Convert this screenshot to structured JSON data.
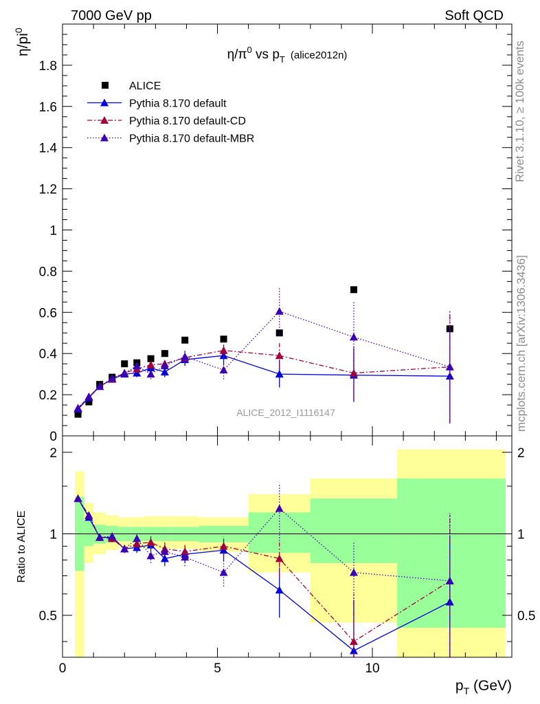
{
  "header": {
    "left": "7000 GeV pp",
    "right": "Soft QCD"
  },
  "side_text": {
    "rivet": "Rivet 3.1.10, ≥ 100k events",
    "mcplots": "mcplots.cern.ch [arXiv:1306.3436]"
  },
  "watermark": "ALICE_2012_I1116147",
  "colors": {
    "data": "#000000",
    "default": "#0000dd",
    "cd": "#a0003c",
    "mbr": "#3c00b4",
    "band_outer": "#ffff99",
    "band_inner": "#99ff99"
  },
  "chart_data": [
    {
      "type": "scatter",
      "title_main": "η/π",
      "title_sup": "0",
      "title_mid": " vs p",
      "title_sub": "T",
      "title_tag": "(alice2012n)",
      "ylabel": "η/pi",
      "ylabel_sup": "0",
      "xlim": [
        0,
        14.5
      ],
      "ylim": [
        0,
        2.0
      ],
      "yticks": [
        "0",
        "0.2",
        "0.4",
        "0.6",
        "0.8",
        "1",
        "1.2",
        "1.4",
        "1.6",
        "1.8"
      ],
      "grid": false,
      "legend_position": "top-left",
      "series": [
        {
          "name": "ALICE",
          "key": "data",
          "marker": "square",
          "x": [
            0.5,
            0.85,
            1.2,
            1.6,
            2.0,
            2.4,
            2.85,
            3.3,
            3.95,
            5.2,
            7.0,
            9.4,
            12.5
          ],
          "y": [
            0.105,
            0.165,
            0.25,
            0.285,
            0.35,
            0.355,
            0.375,
            0.4,
            0.465,
            0.47,
            0.5,
            0.71,
            0.52
          ]
        },
        {
          "name": "Pythia 8.170 default",
          "key": "default",
          "marker": "triangle",
          "line": "solid",
          "x": [
            0.5,
            0.85,
            1.2,
            1.6,
            2.0,
            2.4,
            2.85,
            3.3,
            3.95,
            5.2,
            7.0,
            9.4,
            12.5
          ],
          "y": [
            0.13,
            0.185,
            0.24,
            0.275,
            0.3,
            0.305,
            0.33,
            0.31,
            0.37,
            0.39,
            0.3,
            0.295,
            0.29
          ],
          "err": [
            0.01,
            0.01,
            0.012,
            0.015,
            0.015,
            0.02,
            0.025,
            0.025,
            0.03,
            0.045,
            0.065,
            0.13,
            0.23
          ]
        },
        {
          "name": "Pythia 8.170 default-CD",
          "key": "cd",
          "marker": "triangle",
          "line": "dashdot",
          "x": [
            0.5,
            0.85,
            1.2,
            1.6,
            2.0,
            2.4,
            2.85,
            3.3,
            3.95,
            5.2,
            7.0,
            9.4,
            12.5
          ],
          "y": [
            0.135,
            0.19,
            0.24,
            0.275,
            0.305,
            0.325,
            0.345,
            0.35,
            0.38,
            0.415,
            0.39,
            0.305,
            0.335
          ],
          "err": [
            0.01,
            0.01,
            0.012,
            0.015,
            0.015,
            0.02,
            0.025,
            0.025,
            0.03,
            0.045,
            0.06,
            0.13,
            0.27
          ]
        },
        {
          "name": "Pythia 8.170 default-MBR",
          "key": "mbr",
          "marker": "triangle",
          "line": "dotted",
          "x": [
            0.5,
            0.85,
            1.2,
            1.6,
            2.0,
            2.4,
            2.85,
            3.3,
            3.95,
            5.2,
            7.0,
            9.4,
            12.5
          ],
          "y": [
            0.135,
            0.19,
            0.24,
            0.28,
            0.305,
            0.34,
            0.3,
            0.34,
            0.385,
            0.32,
            0.605,
            0.48,
            0.335
          ],
          "err": [
            0.01,
            0.01,
            0.012,
            0.015,
            0.015,
            0.02,
            0.025,
            0.025,
            0.03,
            0.045,
            0.12,
            0.17,
            0.27
          ]
        }
      ]
    },
    {
      "type": "scatter",
      "ylabel": "Ratio to ALICE",
      "xlabel": "p",
      "xlabel_sub": "T",
      "xlabel_unit": " (GeV)",
      "xlim": [
        0,
        14.5
      ],
      "ylim": [
        0.35,
        2.3
      ],
      "yscale": "log",
      "xticks": [
        "0",
        "5",
        "10"
      ],
      "yticks": [
        "0.5",
        "1",
        "2"
      ],
      "bands": [
        {
          "x0": 0.4,
          "x1": 0.7,
          "outer": [
            0.35,
            1.7
          ],
          "inner": [
            0.73,
            1.37
          ]
        },
        {
          "x0": 0.7,
          "x1": 1.0,
          "outer": [
            0.78,
            1.3
          ],
          "inner": [
            0.9,
            1.12
          ]
        },
        {
          "x0": 1.0,
          "x1": 1.4,
          "outer": [
            0.84,
            1.2
          ],
          "inner": [
            0.92,
            1.08
          ]
        },
        {
          "x0": 1.4,
          "x1": 1.8,
          "outer": [
            0.87,
            1.17
          ],
          "inner": [
            0.93,
            1.07
          ]
        },
        {
          "x0": 1.8,
          "x1": 2.2,
          "outer": [
            0.89,
            1.15
          ],
          "inner": [
            0.94,
            1.06
          ]
        },
        {
          "x0": 2.2,
          "x1": 2.6,
          "outer": [
            0.89,
            1.15
          ],
          "inner": [
            0.94,
            1.06
          ]
        },
        {
          "x0": 2.6,
          "x1": 3.0,
          "outer": [
            0.88,
            1.16
          ],
          "inner": [
            0.94,
            1.06
          ]
        },
        {
          "x0": 3.0,
          "x1": 3.5,
          "outer": [
            0.88,
            1.16
          ],
          "inner": [
            0.94,
            1.06
          ]
        },
        {
          "x0": 3.5,
          "x1": 4.4,
          "outer": [
            0.88,
            1.16
          ],
          "inner": [
            0.94,
            1.06
          ]
        },
        {
          "x0": 4.4,
          "x1": 6.0,
          "outer": [
            0.86,
            1.15
          ],
          "inner": [
            0.93,
            1.07
          ]
        },
        {
          "x0": 6.0,
          "x1": 8.0,
          "outer": [
            0.72,
            1.4
          ],
          "inner": [
            0.85,
            1.2
          ]
        },
        {
          "x0": 8.0,
          "x1": 10.8,
          "outer": [
            0.47,
            1.6
          ],
          "inner": [
            0.78,
            1.35
          ]
        },
        {
          "x0": 10.8,
          "x1": 14.3,
          "outer": [
            0.35,
            2.05
          ],
          "inner": [
            0.45,
            1.6
          ]
        }
      ],
      "series": [
        {
          "name": "Pythia 8.170 default",
          "key": "default",
          "line": "solid",
          "x": [
            0.5,
            0.85,
            1.2,
            1.6,
            2.0,
            2.4,
            2.85,
            3.3,
            3.95,
            5.2,
            7.0,
            9.4,
            12.5
          ],
          "y": [
            1.35,
            1.15,
            0.97,
            0.97,
            0.88,
            0.89,
            0.91,
            0.81,
            0.84,
            0.87,
            0.62,
            0.37,
            0.56
          ],
          "err": [
            0.02,
            0.03,
            0.03,
            0.03,
            0.03,
            0.04,
            0.05,
            0.05,
            0.06,
            0.08,
            0.13,
            0.2,
            0.42
          ]
        },
        {
          "name": "Pythia 8.170 default-CD",
          "key": "cd",
          "line": "dashdot",
          "x": [
            0.5,
            0.85,
            1.2,
            1.6,
            2.0,
            2.4,
            2.85,
            3.3,
            3.95,
            5.2,
            7.0,
            9.4,
            12.5
          ],
          "y": [
            1.35,
            1.17,
            0.97,
            0.96,
            0.88,
            0.92,
            0.93,
            0.88,
            0.86,
            0.9,
            0.81,
            0.4,
            0.67
          ],
          "err": [
            0.02,
            0.03,
            0.03,
            0.03,
            0.03,
            0.04,
            0.05,
            0.05,
            0.06,
            0.08,
            0.12,
            0.2,
            0.52
          ]
        },
        {
          "name": "Pythia 8.170 default-MBR",
          "key": "mbr",
          "line": "dotted",
          "x": [
            0.5,
            0.85,
            1.2,
            1.6,
            2.0,
            2.4,
            2.85,
            3.3,
            3.95,
            5.2,
            7.0,
            9.4,
            12.5
          ],
          "y": [
            1.35,
            1.17,
            0.97,
            0.98,
            0.88,
            0.96,
            0.83,
            0.86,
            0.82,
            0.72,
            1.24,
            0.72,
            0.67
          ],
          "err": [
            0.02,
            0.03,
            0.03,
            0.03,
            0.03,
            0.04,
            0.05,
            0.05,
            0.06,
            0.08,
            0.3,
            0.22,
            0.52
          ]
        }
      ]
    }
  ]
}
